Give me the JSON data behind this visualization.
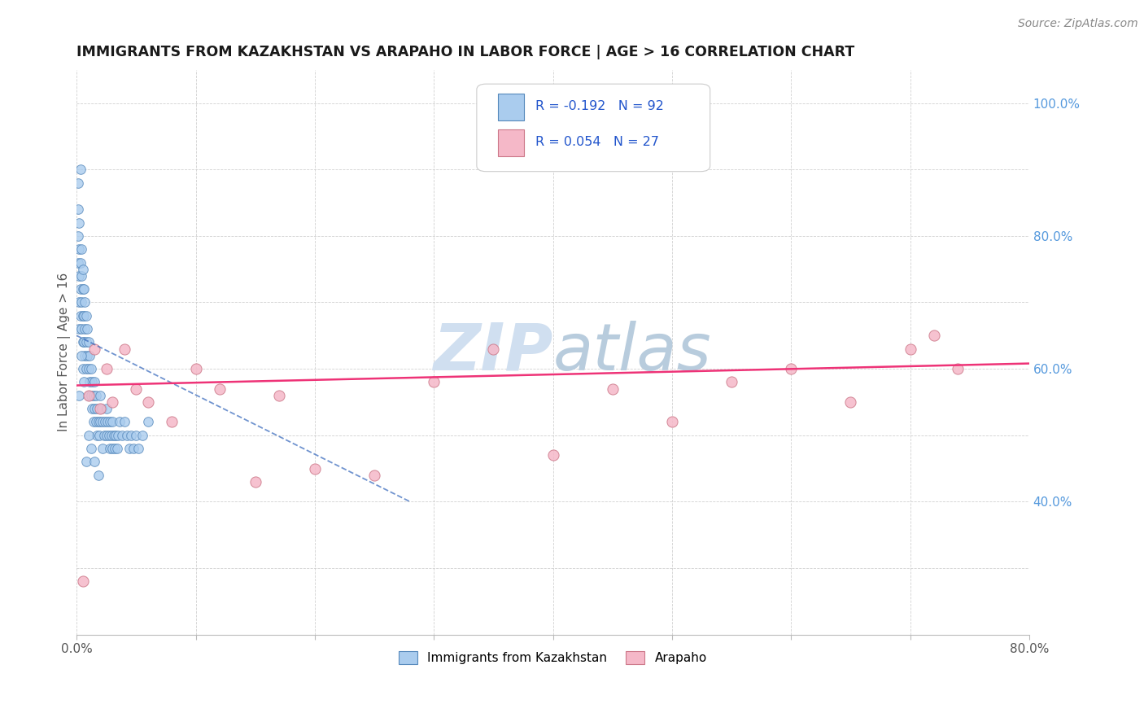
{
  "title": "IMMIGRANTS FROM KAZAKHSTAN VS ARAPAHO IN LABOR FORCE | AGE > 16 CORRELATION CHART",
  "source_text": "Source: ZipAtlas.com",
  "ylabel": "In Labor Force | Age > 16",
  "xlim": [
    0.0,
    0.8
  ],
  "ylim": [
    0.2,
    1.05
  ],
  "xticks": [
    0.0,
    0.1,
    0.2,
    0.3,
    0.4,
    0.5,
    0.6,
    0.7,
    0.8
  ],
  "xticklabels": [
    "0.0%",
    "",
    "",
    "",
    "",
    "",
    "",
    "",
    "80.0%"
  ],
  "yticks_right": [
    0.4,
    0.6,
    0.8,
    1.0
  ],
  "yticklabels_right": [
    "40.0%",
    "60.0%",
    "80.0%",
    "100.0%"
  ],
  "kazakhstan_R": -0.192,
  "kazakhstan_N": 92,
  "arapaho_R": 0.054,
  "arapaho_N": 27,
  "kazakhstan_color": "#aaccee",
  "kazakhstan_edge": "#5588bb",
  "arapaho_color": "#f5b8c8",
  "arapaho_edge": "#cc7788",
  "trend_kaz_color": "#3366bb",
  "trend_ara_color": "#ee3377",
  "legend_R_color": "#2255cc",
  "watermark_color": "#d0dff0",
  "kazakhstan_x": [
    0.001,
    0.001,
    0.001,
    0.001,
    0.002,
    0.002,
    0.002,
    0.002,
    0.002,
    0.003,
    0.003,
    0.003,
    0.003,
    0.004,
    0.004,
    0.004,
    0.004,
    0.005,
    0.005,
    0.005,
    0.005,
    0.005,
    0.006,
    0.006,
    0.006,
    0.007,
    0.007,
    0.007,
    0.008,
    0.008,
    0.008,
    0.009,
    0.009,
    0.01,
    0.01,
    0.01,
    0.011,
    0.011,
    0.012,
    0.012,
    0.013,
    0.013,
    0.014,
    0.014,
    0.015,
    0.015,
    0.016,
    0.016,
    0.017,
    0.017,
    0.018,
    0.019,
    0.02,
    0.02,
    0.021,
    0.022,
    0.022,
    0.023,
    0.024,
    0.025,
    0.025,
    0.026,
    0.027,
    0.028,
    0.028,
    0.029,
    0.03,
    0.03,
    0.031,
    0.032,
    0.033,
    0.034,
    0.035,
    0.036,
    0.038,
    0.04,
    0.042,
    0.044,
    0.046,
    0.048,
    0.05,
    0.052,
    0.055,
    0.06,
    0.002,
    0.004,
    0.006,
    0.008,
    0.01,
    0.012,
    0.015,
    0.018
  ],
  "kazakhstan_y": [
    0.88,
    0.84,
    0.8,
    0.76,
    0.82,
    0.78,
    0.74,
    0.7,
    0.66,
    0.9,
    0.76,
    0.72,
    0.68,
    0.78,
    0.74,
    0.7,
    0.66,
    0.75,
    0.72,
    0.68,
    0.64,
    0.6,
    0.72,
    0.68,
    0.64,
    0.7,
    0.66,
    0.62,
    0.68,
    0.64,
    0.6,
    0.66,
    0.62,
    0.64,
    0.6,
    0.56,
    0.62,
    0.58,
    0.6,
    0.56,
    0.58,
    0.54,
    0.56,
    0.52,
    0.58,
    0.54,
    0.56,
    0.52,
    0.54,
    0.5,
    0.52,
    0.5,
    0.56,
    0.52,
    0.54,
    0.52,
    0.48,
    0.5,
    0.52,
    0.54,
    0.5,
    0.52,
    0.5,
    0.52,
    0.48,
    0.5,
    0.52,
    0.48,
    0.5,
    0.48,
    0.5,
    0.48,
    0.5,
    0.52,
    0.5,
    0.52,
    0.5,
    0.48,
    0.5,
    0.48,
    0.5,
    0.48,
    0.5,
    0.52,
    0.56,
    0.62,
    0.58,
    0.46,
    0.5,
    0.48,
    0.46,
    0.44
  ],
  "arapaho_x": [
    0.005,
    0.01,
    0.015,
    0.02,
    0.025,
    0.03,
    0.04,
    0.05,
    0.06,
    0.08,
    0.1,
    0.12,
    0.15,
    0.17,
    0.2,
    0.25,
    0.3,
    0.35,
    0.4,
    0.45,
    0.5,
    0.55,
    0.6,
    0.65,
    0.7,
    0.72,
    0.74
  ],
  "arapaho_y": [
    0.28,
    0.56,
    0.63,
    0.54,
    0.6,
    0.55,
    0.63,
    0.57,
    0.55,
    0.52,
    0.6,
    0.57,
    0.43,
    0.56,
    0.45,
    0.44,
    0.58,
    0.63,
    0.47,
    0.57,
    0.52,
    0.58,
    0.6,
    0.55,
    0.63,
    0.65,
    0.6
  ],
  "kaz_trend_x0": 0.0,
  "kaz_trend_x1": 0.28,
  "kaz_trend_y0": 0.65,
  "kaz_trend_y1": 0.4,
  "ara_trend_y0": 0.575,
  "ara_trend_y1": 0.608
}
